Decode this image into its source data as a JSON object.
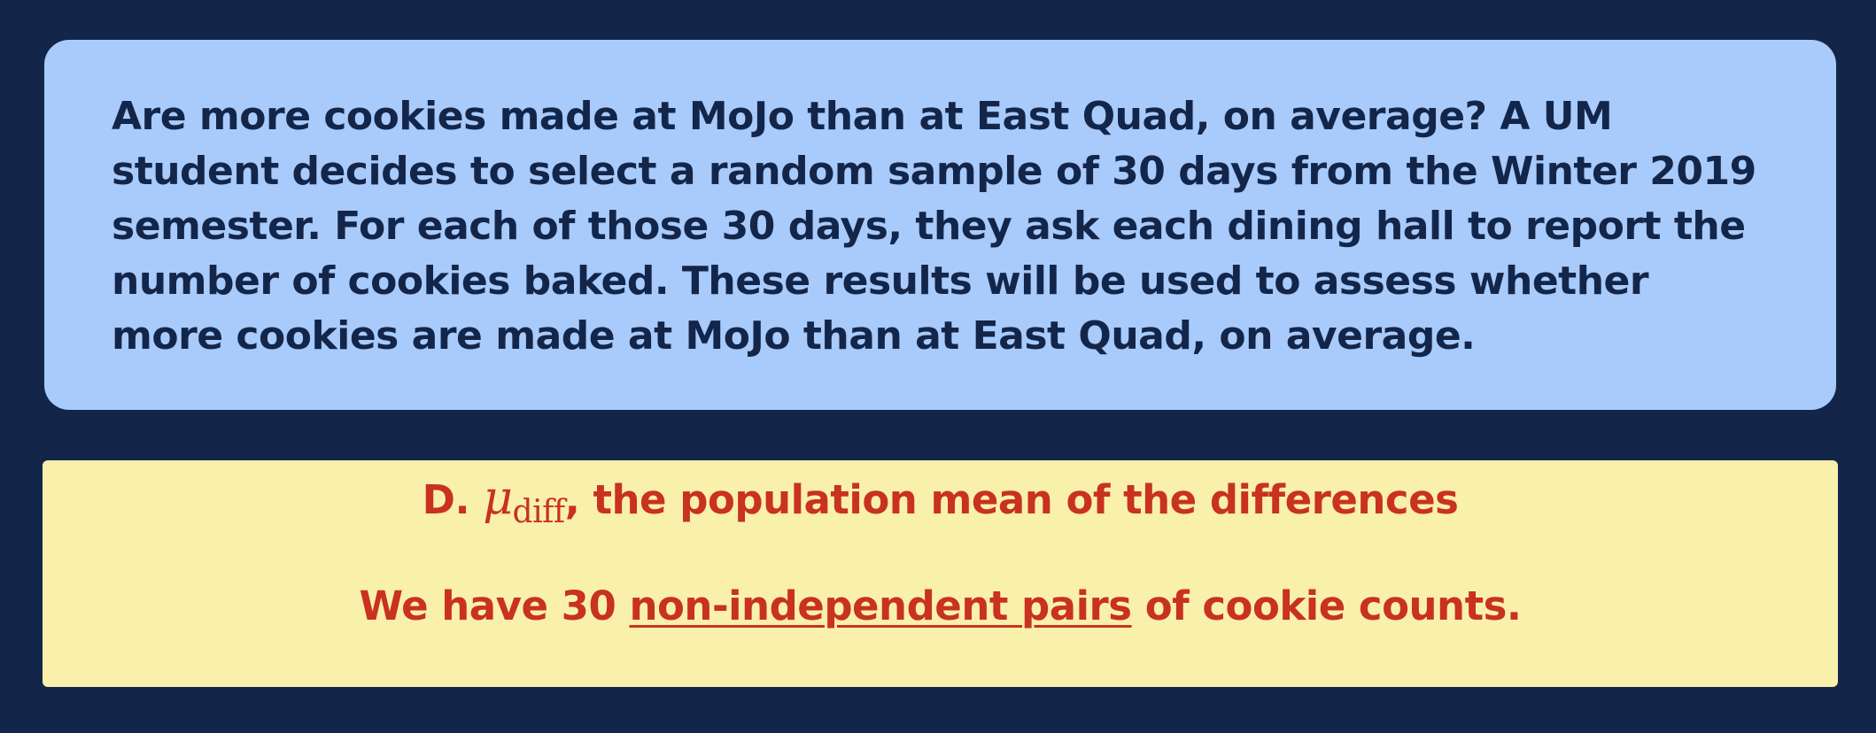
{
  "question": {
    "text": "Are more cookies made at MoJo than at East Quad, on average? A UM student decides to select a random sample of 30 days from the Winter 2019 semester. For each of those 30 days, they ask each dining hall to report the number of cookies baked. These results will be used to assess whether more cookies are made at MoJo than at East Quad, on average."
  },
  "answer": {
    "option_label": "D.",
    "symbol": "μ",
    "symbol_subscript": "diff",
    "line1_rest": ", the population mean of the differences",
    "line2_before": "We have 30 ",
    "line2_underlined": "non-independent pairs",
    "line2_after": " of cookie counts."
  },
  "colors": {
    "background": "#13264a",
    "question_box": "#a8cbfb",
    "question_text": "#13264a",
    "answer_box": "#f9f0ac",
    "answer_text": "#c8321f"
  }
}
